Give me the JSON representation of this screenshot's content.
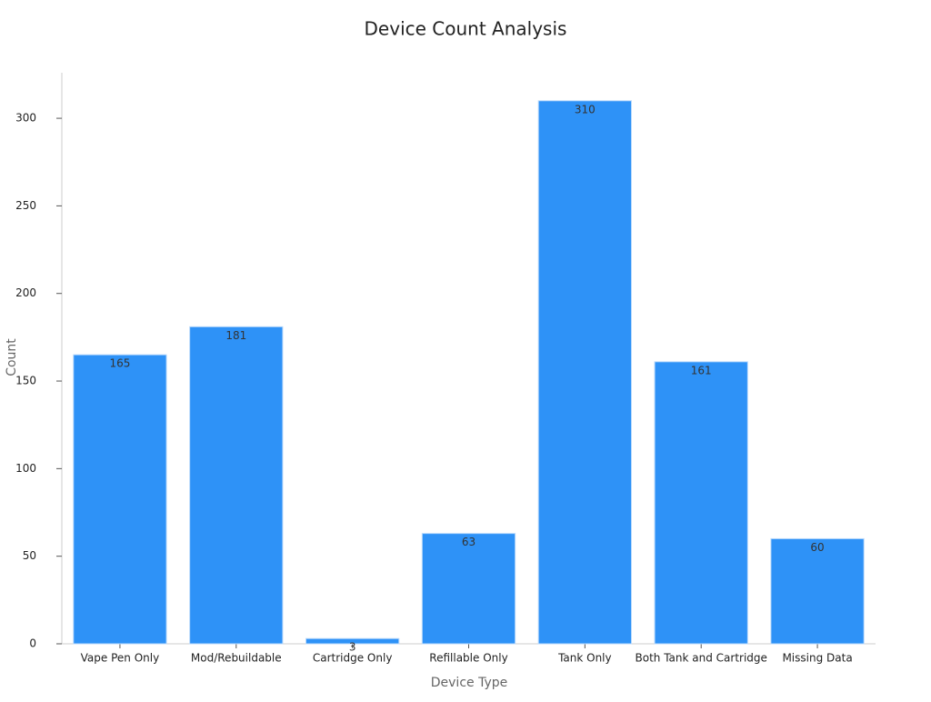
{
  "chart_data": {
    "type": "bar",
    "title": "Device Count Analysis",
    "x_label": "Device Type",
    "y_label": "Count",
    "categories": [
      "Vape Pen Only",
      "Mod/Rebuildable",
      "Cartridge Only",
      "Refillable Only",
      "Tank Only",
      "Both Tank and Cartridge",
      "Missing Data"
    ],
    "values": [
      165,
      181,
      3,
      63,
      310,
      161,
      60
    ],
    "color": "#2e92f7",
    "ylim": [
      0,
      326
    ],
    "yticks": [
      0,
      50,
      100,
      150,
      200,
      250,
      300
    ],
    "grid": false
  }
}
